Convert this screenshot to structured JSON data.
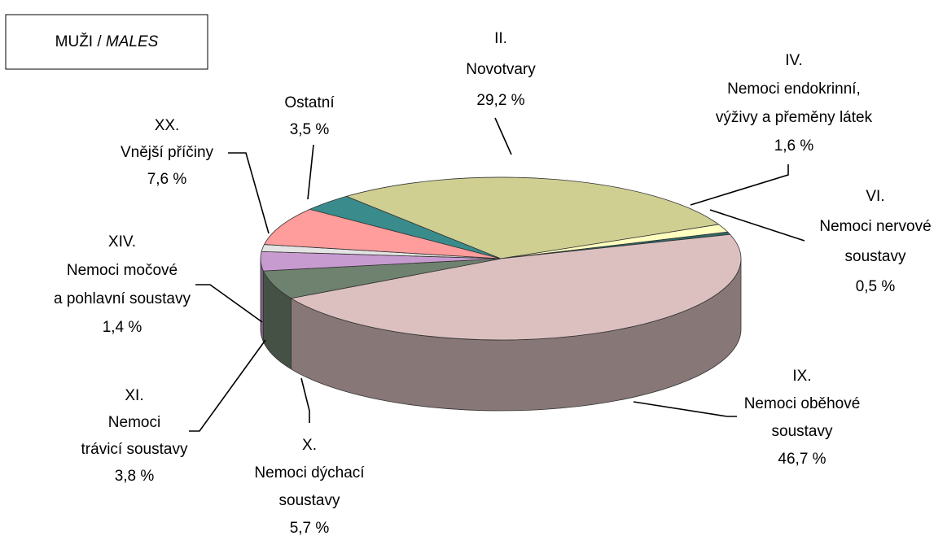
{
  "chart_data": {
    "type": "pie3d",
    "title": [
      "MUŽI /",
      "MALES"
    ],
    "categories": [
      [
        "II.",
        "Novotvary"
      ],
      [
        "IV.",
        "Nemoci endokrinní,",
        "výživy a přeměny látek"
      ],
      [
        "VI.",
        "Nemoci nervové",
        "soustavy"
      ],
      [
        "IX.",
        "Nemoci oběhové",
        "soustavy"
      ],
      [
        "X.",
        "Nemoci dýchací",
        "soustavy"
      ],
      [
        "XI.",
        "Nemoci",
        "trávicí soustavy"
      ],
      [
        "XIV.",
        "Nemoci močové",
        "a pohlavní soustavy"
      ],
      [
        "XX.",
        "Vnější příčiny"
      ],
      [
        "Ostatní"
      ]
    ],
    "values": [
      29.2,
      1.6,
      0.5,
      46.7,
      5.7,
      3.8,
      1.4,
      7.6,
      3.5
    ],
    "value_labels": [
      "29,2 %",
      "1,6 %",
      "0,5 %",
      "46,7 %",
      "5,7 %",
      "3,8 %",
      "1,4 %",
      "7,6 %",
      "3,5 %"
    ],
    "colors": [
      "#cfcf92",
      "#ffffc0",
      "#2f6b6b",
      "#dcc0c0",
      "#6f826f",
      "#c79bd0",
      "#e4e4e4",
      "#ff9c9c",
      "#3a8c8c"
    ]
  }
}
